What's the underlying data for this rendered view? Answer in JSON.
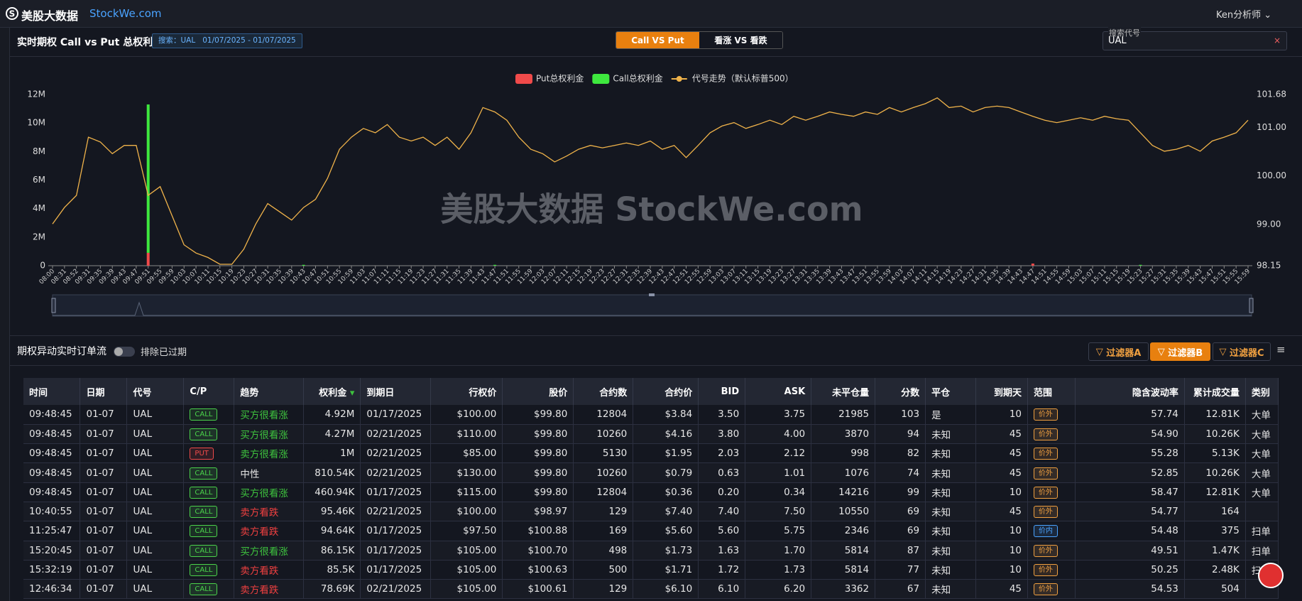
{
  "nav": {
    "logo": "美股大数据",
    "site": "StockWe.com",
    "user": "Ken分析师"
  },
  "panel": {
    "title": "实时期权 Call vs Put 总权利金",
    "search_tag": "搜索：UAL   01/07/2025 - 01/07/2025",
    "tabs": [
      "Call VS Put",
      "看涨 VS 看跌"
    ],
    "search_label": "搜索代号",
    "search_value": "UAL"
  },
  "chart_data": {
    "type": "bar",
    "watermark": "美股大数据 StockWe.com",
    "grid": false,
    "legend": "top",
    "categories": [
      "08:00",
      "08:31",
      "08:52",
      "09:31",
      "09:35",
      "09:39",
      "09:43",
      "09:47",
      "09:51",
      "09:55",
      "09:59",
      "10:03",
      "10:07",
      "10:11",
      "10:15",
      "10:19",
      "10:23",
      "10:27",
      "10:31",
      "10:35",
      "10:39",
      "10:43",
      "10:47",
      "10:51",
      "10:55",
      "10:59",
      "11:03",
      "11:07",
      "11:11",
      "11:15",
      "11:19",
      "11:23",
      "11:27",
      "11:31",
      "11:35",
      "11:39",
      "11:43",
      "11:47",
      "11:51",
      "11:55",
      "11:59",
      "12:03",
      "12:07",
      "12:11",
      "12:15",
      "12:19",
      "12:23",
      "12:27",
      "12:31",
      "12:35",
      "12:39",
      "12:43",
      "12:47",
      "12:51",
      "12:55",
      "12:59",
      "13:03",
      "13:07",
      "13:11",
      "13:15",
      "13:19",
      "13:23",
      "13:27",
      "13:31",
      "13:35",
      "13:39",
      "13:43",
      "13:47",
      "13:51",
      "13:55",
      "13:59",
      "14:03",
      "14:07",
      "14:11",
      "14:15",
      "14:19",
      "14:23",
      "14:27",
      "14:31",
      "14:35",
      "14:39",
      "14:43",
      "14:47",
      "14:51",
      "14:55",
      "14:59",
      "15:03",
      "15:07",
      "15:11",
      "15:15",
      "15:19",
      "15:23",
      "15:27",
      "15:31",
      "15:35",
      "15:39",
      "15:43",
      "15:47",
      "15:51",
      "15:55",
      "15:59"
    ],
    "series": [
      {
        "name": "Put总权利金",
        "color": "#f04a4a",
        "stack": "premium",
        "values": [
          0,
          0,
          0,
          0,
          0,
          0,
          0,
          0,
          900000,
          0,
          0,
          0,
          0,
          0,
          0,
          0,
          0,
          0,
          0,
          0,
          0,
          0,
          0,
          0,
          0,
          0,
          0,
          0,
          0,
          0,
          0,
          0,
          0,
          0,
          0,
          0,
          0,
          0,
          0,
          0,
          0,
          0,
          0,
          0,
          0,
          0,
          0,
          0,
          0,
          0,
          0,
          0,
          0,
          0,
          0,
          0,
          0,
          0,
          0,
          0,
          0,
          0,
          0,
          0,
          0,
          0,
          0,
          0,
          0,
          0,
          0,
          0,
          0,
          0,
          0,
          0,
          0,
          0,
          0,
          0,
          0,
          0,
          150000,
          0,
          0,
          0,
          0,
          0,
          0,
          0,
          0,
          0,
          0,
          0,
          0,
          0,
          0,
          0,
          0,
          0,
          0
        ]
      },
      {
        "name": "Call总权利金",
        "color": "#3ee83e",
        "stack": "premium",
        "values": [
          0,
          0,
          0,
          0,
          0,
          0,
          0,
          0,
          10400000,
          0,
          0,
          0,
          0,
          0,
          0,
          0,
          0,
          0,
          0,
          0,
          0,
          60000,
          0,
          0,
          0,
          0,
          0,
          0,
          0,
          0,
          0,
          0,
          0,
          0,
          0,
          0,
          0,
          60000,
          0,
          0,
          0,
          0,
          0,
          0,
          0,
          0,
          0,
          0,
          0,
          0,
          0,
          0,
          0,
          0,
          0,
          0,
          0,
          0,
          0,
          0,
          0,
          0,
          0,
          0,
          0,
          0,
          0,
          0,
          0,
          0,
          0,
          0,
          0,
          0,
          0,
          0,
          0,
          0,
          0,
          0,
          0,
          0,
          0,
          0,
          0,
          0,
          0,
          0,
          0,
          0,
          0,
          60000,
          0,
          0,
          0,
          0,
          0,
          0,
          0,
          0,
          0
        ]
      },
      {
        "name": "代号走势（默认标普500）",
        "color": "#f0b34a",
        "type": "line",
        "axis": "y2",
        "values": [
          99.01,
          99.35,
          99.6,
          100.8,
          100.7,
          100.46,
          100.63,
          100.63,
          99.6,
          99.78,
          99.18,
          98.58,
          98.41,
          98.32,
          98.18,
          98.18,
          98.49,
          99.01,
          99.43,
          99.26,
          99.09,
          99.35,
          99.52,
          99.95,
          100.55,
          100.8,
          100.98,
          100.89,
          101.06,
          100.8,
          100.72,
          100.8,
          100.63,
          100.8,
          100.55,
          100.89,
          101.41,
          101.32,
          101.15,
          100.8,
          100.55,
          100.46,
          100.29,
          100.41,
          100.55,
          100.63,
          100.58,
          100.63,
          100.68,
          100.63,
          100.72,
          100.55,
          100.63,
          100.38,
          100.63,
          100.89,
          101.03,
          101.1,
          100.98,
          101.06,
          101.15,
          101.06,
          101.23,
          101.15,
          101.23,
          101.32,
          101.27,
          101.23,
          101.32,
          101.27,
          101.41,
          101.32,
          101.41,
          101.49,
          101.61,
          101.41,
          101.44,
          101.32,
          101.41,
          101.44,
          101.41,
          101.32,
          101.23,
          101.15,
          101.1,
          101.15,
          101.2,
          101.15,
          101.23,
          101.18,
          101.15,
          100.89,
          100.63,
          100.51,
          100.55,
          100.63,
          100.51,
          100.72,
          100.8,
          100.89,
          101.15
        ]
      }
    ],
    "ylim": [
      0,
      12000000
    ],
    "yticks": [
      0,
      {
        "value": 2000000,
        "label": "2M"
      },
      {
        "value": 4000000,
        "label": "4M"
      },
      {
        "value": 6000000,
        "label": "6M"
      },
      {
        "value": 8000000,
        "label": "8M"
      },
      {
        "value": 10000000,
        "label": "10M"
      },
      {
        "value": 12000000,
        "label": "12M"
      }
    ],
    "y2lim": [
      98.15,
      101.68
    ],
    "y2ticks": [
      98.15,
      {
        "value": 99,
        "label": "99.00"
      },
      {
        "value": 100,
        "label": "100.00"
      },
      {
        "value": 101,
        "label": "101.00"
      },
      101.68
    ]
  },
  "flow": {
    "title": "期权异动实时订单流",
    "toggle_label": "排除已过期",
    "filters": [
      "过滤器A",
      "过滤器B",
      "过滤器C"
    ]
  },
  "table": {
    "header": [
      "时间",
      "日期",
      "代号",
      "C/P",
      "趋势",
      "权利金",
      "到期日",
      "行权价",
      "股价",
      "合约数",
      "合约价",
      "BID",
      "ASK",
      "未平仓量",
      "分数",
      "平仓",
      "到期天",
      "范围",
      "隐含波动率",
      "累计成交量",
      "类别"
    ],
    "rows": [
      [
        "09:48:45",
        "01-07",
        "UAL",
        "CALL",
        "买方很看涨",
        "4.92M",
        "01/17/2025",
        "$100.00",
        "$99.80",
        "12804",
        "$3.84",
        "3.50",
        "3.75",
        "21985",
        "103",
        "是",
        "10",
        "价外",
        "57.74",
        "12.81K",
        "大单"
      ],
      [
        "09:48:45",
        "01-07",
        "UAL",
        "CALL",
        "买方很看涨",
        "4.27M",
        "02/21/2025",
        "$110.00",
        "$99.80",
        "10260",
        "$4.16",
        "3.80",
        "4.00",
        "3870",
        "94",
        "未知",
        "45",
        "价外",
        "54.90",
        "10.26K",
        "大单"
      ],
      [
        "09:48:45",
        "01-07",
        "UAL",
        "PUT",
        "卖方很看涨",
        "1M",
        "02/21/2025",
        "$85.00",
        "$99.80",
        "5130",
        "$1.95",
        "2.03",
        "2.12",
        "998",
        "82",
        "未知",
        "45",
        "价外",
        "55.28",
        "5.13K",
        "大单"
      ],
      [
        "09:48:45",
        "01-07",
        "UAL",
        "CALL",
        "中性",
        "810.54K",
        "02/21/2025",
        "$130.00",
        "$99.80",
        "10260",
        "$0.79",
        "0.63",
        "1.01",
        "1076",
        "74",
        "未知",
        "45",
        "价外",
        "52.85",
        "10.26K",
        "大单"
      ],
      [
        "09:48:45",
        "01-07",
        "UAL",
        "CALL",
        "买方很看涨",
        "460.94K",
        "01/17/2025",
        "$115.00",
        "$99.80",
        "12804",
        "$0.36",
        "0.20",
        "0.34",
        "14216",
        "99",
        "未知",
        "10",
        "价外",
        "58.47",
        "12.81K",
        "大单"
      ],
      [
        "10:40:55",
        "01-07",
        "UAL",
        "CALL",
        "卖方看跌",
        "95.46K",
        "02/21/2025",
        "$100.00",
        "$98.97",
        "129",
        "$7.40",
        "7.40",
        "7.50",
        "10550",
        "69",
        "未知",
        "45",
        "价外",
        "54.77",
        "164",
        null
      ],
      [
        "11:25:47",
        "01-07",
        "UAL",
        "CALL",
        "卖方看跌",
        "94.64K",
        "01/17/2025",
        "$97.50",
        "$100.88",
        "169",
        "$5.60",
        "5.60",
        "5.75",
        "2346",
        "69",
        "未知",
        "10",
        "价内",
        "54.48",
        "375",
        "扫单"
      ],
      [
        "15:20:45",
        "01-07",
        "UAL",
        "CALL",
        "买方很看涨",
        "86.15K",
        "01/17/2025",
        "$105.00",
        "$100.70",
        "498",
        "$1.73",
        "1.63",
        "1.70",
        "5814",
        "87",
        "未知",
        "10",
        "价外",
        "49.51",
        "1.47K",
        "扫单"
      ],
      [
        "15:32:19",
        "01-07",
        "UAL",
        "CALL",
        "卖方看跌",
        "85.5K",
        "01/17/2025",
        "$105.00",
        "$100.63",
        "500",
        "$1.71",
        "1.72",
        "1.73",
        "5814",
        "77",
        "未知",
        "10",
        "价外",
        "50.25",
        "2.48K",
        "扫单"
      ],
      [
        "12:46:34",
        "01-07",
        "UAL",
        "CALL",
        "卖方看跌",
        "78.69K",
        "02/21/2025",
        "$105.00",
        "$100.61",
        "129",
        "$6.10",
        "6.10",
        "6.20",
        "3362",
        "67",
        "未知",
        "45",
        "价外",
        "54.53",
        "504",
        null
      ]
    ],
    "row_colors": [
      {
        "cp": "#4bd34b",
        "trend": "#3ec33e",
        "range": "#f0a040"
      },
      {
        "cp": "#4bd34b",
        "trend": "#3ec33e",
        "range": "#f0a040"
      },
      {
        "cp": "#f04a4a",
        "trend": "#3ec33e",
        "range": "#f0a040"
      },
      {
        "cp": "#4bd34b",
        "trend": "#e8e8e8",
        "range": "#f0a040"
      },
      {
        "cp": "#4bd34b",
        "trend": "#3ec33e",
        "range": "#f0a040"
      },
      {
        "cp": "#4bd34b",
        "trend": "#f04040",
        "range": "#f0a040"
      },
      {
        "cp": "#4bd34b",
        "trend": "#f04040",
        "range": "#4aa3ff"
      },
      {
        "cp": "#4bd34b",
        "trend": "#3ec33e",
        "range": "#f0a040"
      },
      {
        "cp": "#4bd34b",
        "trend": "#f04040",
        "range": "#f0a040"
      },
      {
        "cp": "#4bd34b",
        "trend": "#f04040",
        "range": "#f0a040"
      }
    ]
  }
}
